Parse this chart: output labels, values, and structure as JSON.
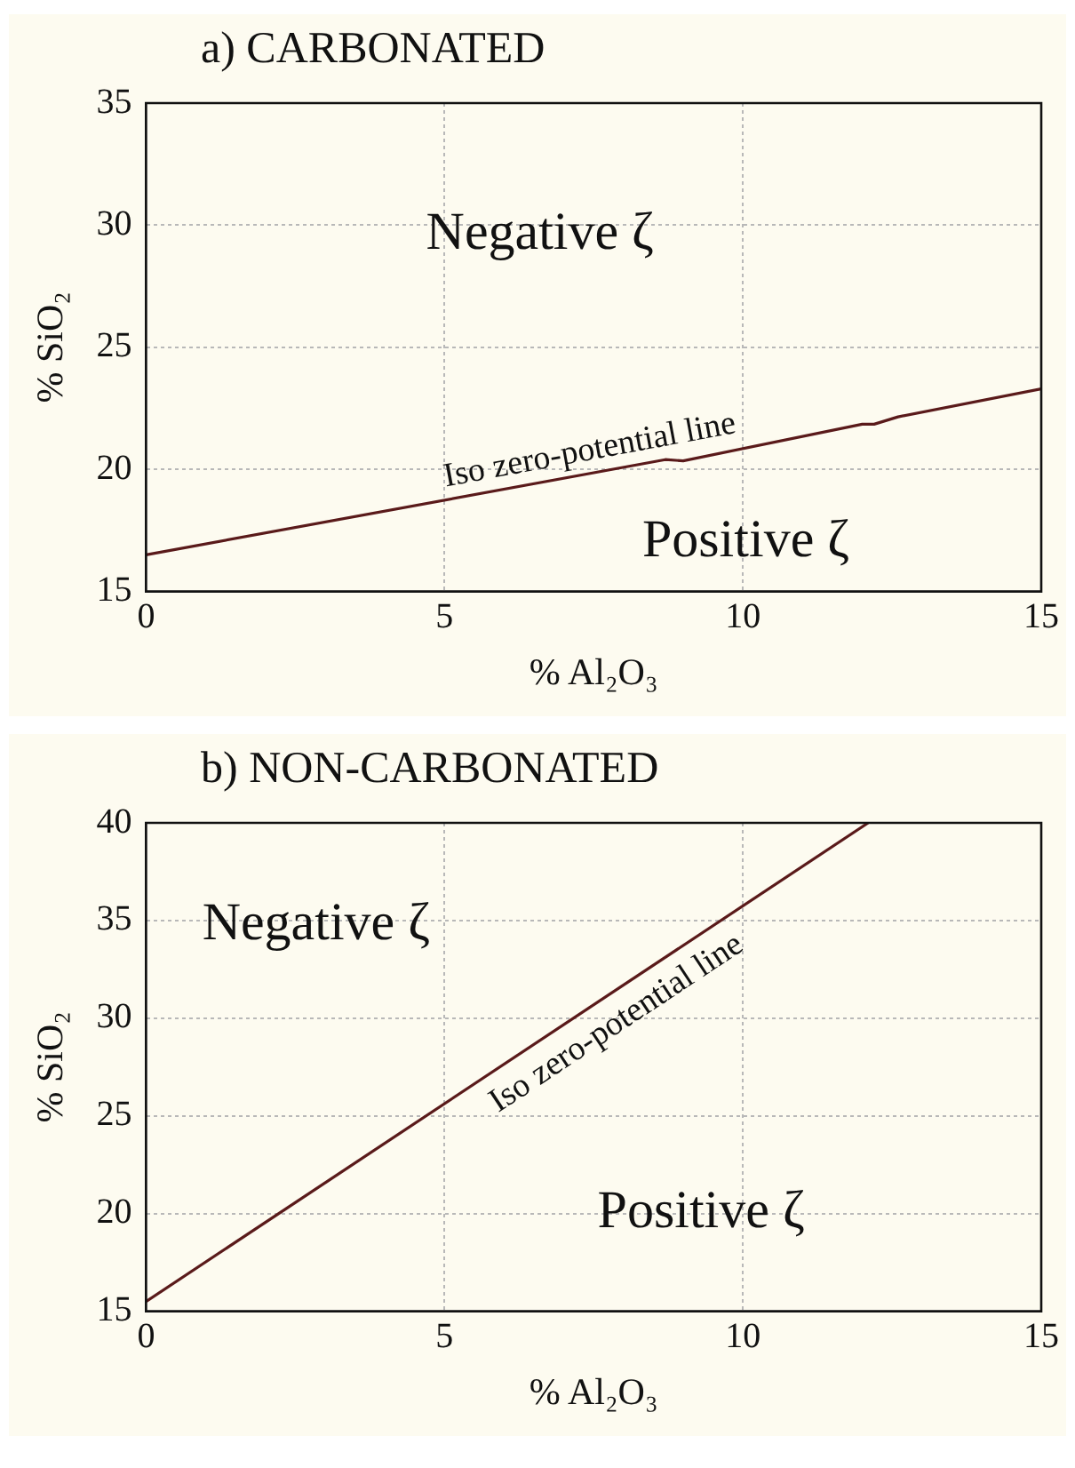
{
  "chart_data": [
    {
      "type": "line",
      "title": "a) CARBONATED",
      "xlabel": "% Al₂O₃",
      "ylabel": "% SiO₂",
      "x": [
        0,
        8.7,
        9,
        12,
        12.2,
        12.6,
        15
      ],
      "series": [
        {
          "color": "#5a1a1a",
          "values": [
            16.5,
            20.4,
            20.35,
            21.85,
            21.85,
            22.15,
            23.3
          ]
        }
      ],
      "xlim": [
        0,
        15
      ],
      "ylim": [
        15,
        35
      ],
      "xticks": [
        0,
        5,
        10,
        15
      ],
      "yticks": [
        15,
        20,
        25,
        30,
        35
      ],
      "grid": true,
      "marker": "none",
      "annotations": [
        "Negative ζ",
        "Positive ζ",
        "Iso zero-potential line"
      ]
    },
    {
      "type": "line",
      "title": "b) NON-CARBONATED",
      "xlabel": "% Al₂O₃",
      "ylabel": "% SiO₂",
      "x": [
        0,
        12.1
      ],
      "series": [
        {
          "color": "#5a1a1a",
          "values": [
            15.5,
            40
          ]
        }
      ],
      "xlim": [
        0,
        15
      ],
      "ylim": [
        15,
        40
      ],
      "xticks": [
        0,
        5,
        10,
        15
      ],
      "yticks": [
        15,
        20,
        25,
        30,
        35,
        40
      ],
      "grid": true,
      "marker": "none",
      "annotations": [
        "Negative ζ",
        "Positive ζ",
        "Iso zero-potential line"
      ]
    }
  ]
}
